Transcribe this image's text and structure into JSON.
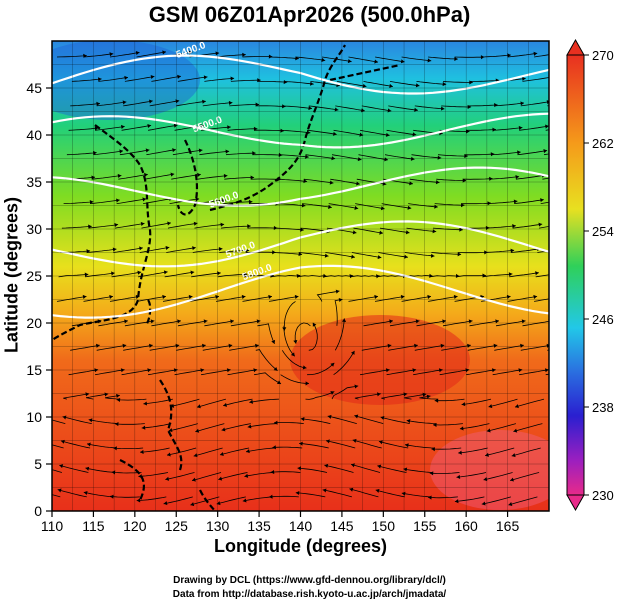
{
  "title": "GSM 06Z01Apr2026 (500.0hPa)",
  "xaxis": {
    "label": "Longitude (degrees)",
    "range": [
      110,
      170
    ],
    "ticks": [
      110,
      115,
      120,
      125,
      130,
      135,
      140,
      145,
      150,
      155,
      160,
      165
    ]
  },
  "yaxis": {
    "label": "Latitude  (degrees)",
    "range": [
      0,
      50
    ],
    "ticks": [
      0,
      5,
      10,
      15,
      20,
      25,
      30,
      35,
      40,
      45
    ]
  },
  "colorbar": {
    "min": 230,
    "max": 270,
    "tick_labels": [
      "270",
      "262",
      "254",
      "246",
      "238",
      "230"
    ],
    "colors": [
      "#e23a6e",
      "#b01fb0",
      "#3b1fc8",
      "#2a6fe0",
      "#22c8e8",
      "#2fd05a",
      "#9be82a",
      "#f0e020",
      "#f59a1a",
      "#e83a1e"
    ]
  },
  "contours": [
    {
      "label": "5400.0"
    },
    {
      "label": "5500.0"
    },
    {
      "label": "5600.0"
    },
    {
      "label": "5700.0"
    },
    {
      "label": "5800.0"
    }
  ],
  "credits": {
    "line1": "Drawing by DCL (https://www.gfd-dennou.org/library/dcl/)",
    "line2": "Data from http://database.rish.kyoto-u.ac.jp/arch/jmadata/"
  }
}
